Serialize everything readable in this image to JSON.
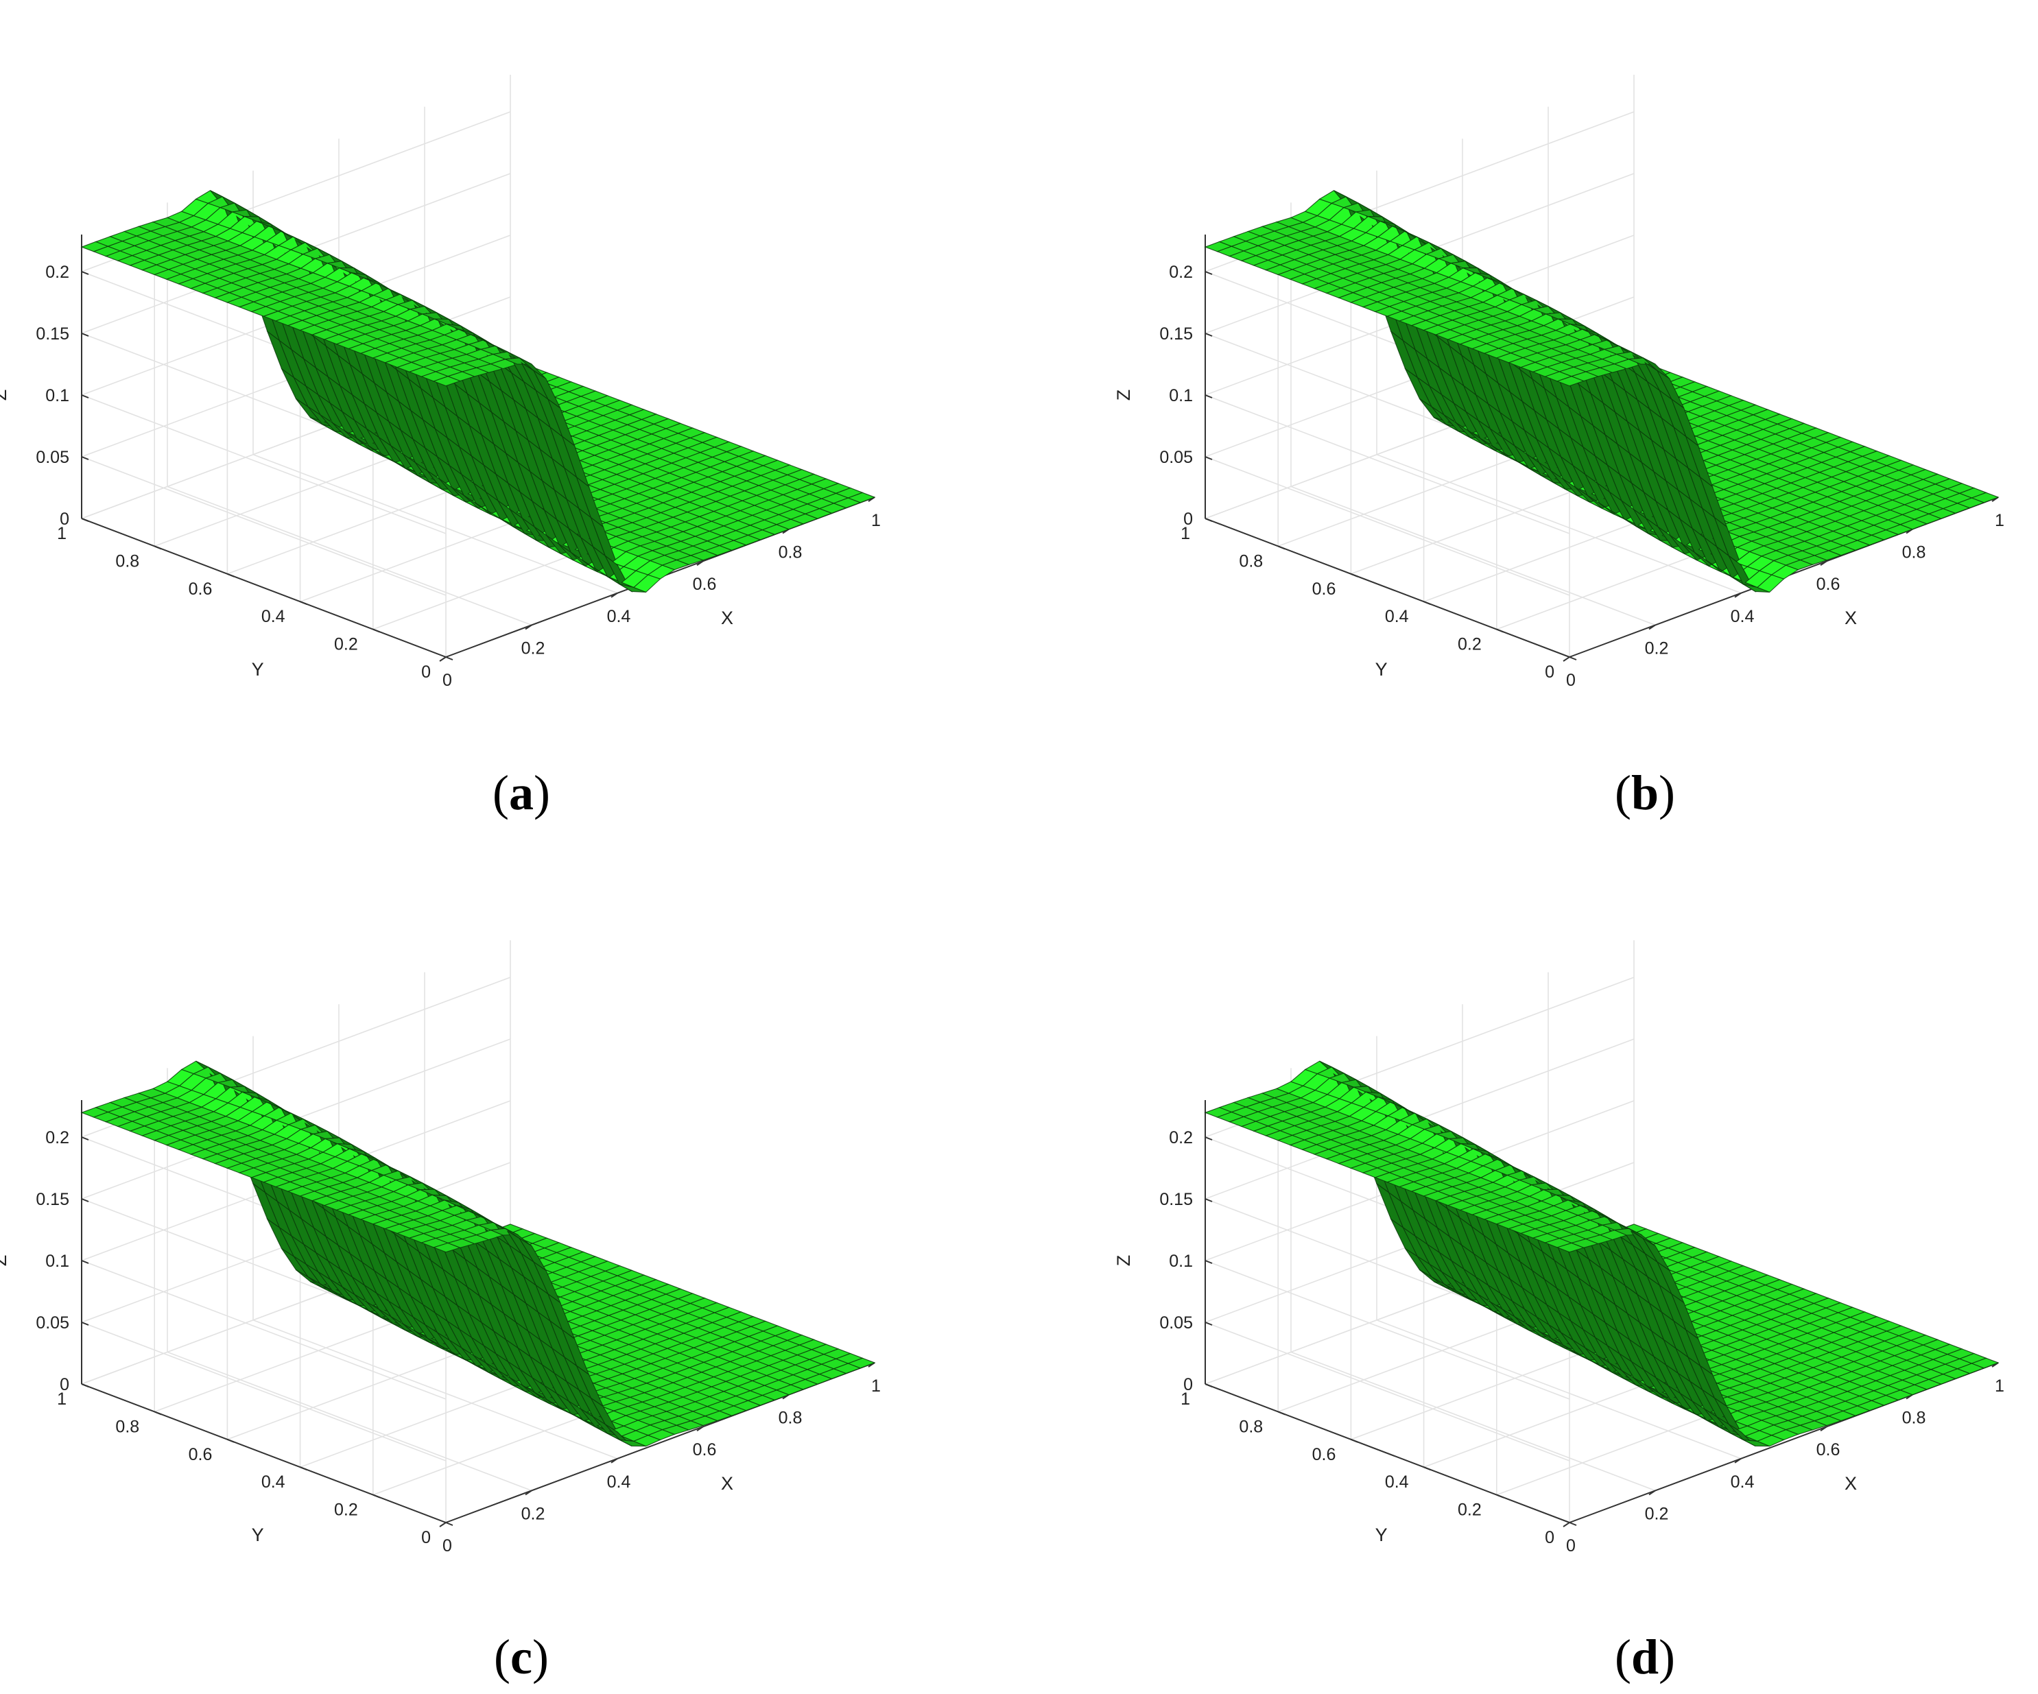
{
  "chart_data": [
    {
      "panel": "a",
      "type": "surface",
      "xlabel": "X",
      "ylabel": "Y",
      "zlabel": "Z",
      "xlim": [
        0,
        1
      ],
      "ylim": [
        0,
        1
      ],
      "zlim": [
        0,
        0.22
      ],
      "xticks": [
        "0",
        "0.2",
        "0.4",
        "0.6",
        "0.8",
        "1"
      ],
      "yticks": [
        "0",
        "0.2",
        "0.4",
        "0.6",
        "0.8",
        "1"
      ],
      "zticks": [
        "0",
        "0.05",
        "0.1",
        "0.15",
        "0.2"
      ],
      "grid": true,
      "surface_color": "#22e022",
      "mesh_color": "#0b3b0b",
      "grid_n": 30,
      "front_x0": 0.32,
      "front_slope": 0.1,
      "front_width": 0.1,
      "z_high": 0.22,
      "z_low": 0.0,
      "overshoot": 0.02,
      "undershoot": 0.02
    },
    {
      "panel": "b",
      "type": "surface",
      "xlabel": "X",
      "ylabel": "Y",
      "zlabel": "Z",
      "xlim": [
        0,
        1
      ],
      "ylim": [
        0,
        1
      ],
      "zlim": [
        0,
        0.22
      ],
      "xticks": [
        "0",
        "0.2",
        "0.4",
        "0.6",
        "0.8",
        "1"
      ],
      "yticks": [
        "0",
        "0.2",
        "0.4",
        "0.6",
        "0.8",
        "1"
      ],
      "zticks": [
        "0",
        "0.05",
        "0.1",
        "0.15",
        "0.2"
      ],
      "grid": true,
      "surface_color": "#22e022",
      "mesh_color": "#0b3b0b",
      "grid_n": 30,
      "front_x0": 0.32,
      "front_slope": 0.1,
      "front_width": 0.1,
      "z_high": 0.22,
      "z_low": 0.0,
      "overshoot": 0.02,
      "undershoot": 0.02
    },
    {
      "panel": "c",
      "type": "surface",
      "xlabel": "X",
      "ylabel": "Y",
      "zlabel": "Z",
      "xlim": [
        0,
        1
      ],
      "ylim": [
        0,
        1
      ],
      "zlim": [
        0,
        0.22
      ],
      "xticks": [
        "0",
        "0.2",
        "0.4",
        "0.6",
        "0.8",
        "1"
      ],
      "yticks": [
        "0",
        "0.2",
        "0.4",
        "0.6",
        "0.8",
        "1"
      ],
      "zticks": [
        "0",
        "0.05",
        "0.1",
        "0.15",
        "0.2"
      ],
      "grid": true,
      "surface_color": "#22e022",
      "mesh_color": "#0b3b0b",
      "grid_n": 30,
      "front_x0": 0.3,
      "front_slope": 0.1,
      "front_width": 0.11,
      "z_high": 0.22,
      "z_low": 0.0,
      "overshoot": 0.02,
      "undershoot": 0.01
    },
    {
      "panel": "d",
      "type": "surface",
      "xlabel": "X",
      "ylabel": "Y",
      "zlabel": "Z",
      "xlim": [
        0,
        1
      ],
      "ylim": [
        0,
        1
      ],
      "zlim": [
        0,
        0.22
      ],
      "xticks": [
        "0",
        "0.2",
        "0.4",
        "0.6",
        "0.8",
        "1"
      ],
      "yticks": [
        "0",
        "0.2",
        "0.4",
        "0.6",
        "0.8",
        "1"
      ],
      "zticks": [
        "0",
        "0.05",
        "0.1",
        "0.15",
        "0.2"
      ],
      "grid": true,
      "surface_color": "#22e022",
      "mesh_color": "#0b3b0b",
      "grid_n": 30,
      "front_x0": 0.3,
      "front_slope": 0.1,
      "front_width": 0.11,
      "z_high": 0.22,
      "z_low": 0.0,
      "overshoot": 0.02,
      "undershoot": 0.01
    }
  ],
  "captions": [
    {
      "open": "(",
      "letter": "a",
      "close": ")"
    },
    {
      "open": "(",
      "letter": "b",
      "close": ")"
    },
    {
      "open": "(",
      "letter": "c",
      "close": ")"
    },
    {
      "open": "(",
      "letter": "d",
      "close": ")"
    }
  ]
}
